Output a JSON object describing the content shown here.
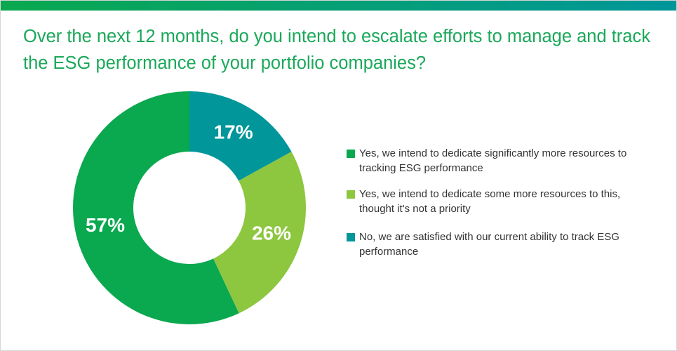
{
  "chart_data": {
    "type": "donut",
    "title": "Over the next 12 months, do you intend to escalate efforts to manage and track the ESG performance of your portfolio companies?",
    "categories": [
      "Yes, we intend to dedicate significantly more resources to tracking ESG performance",
      "Yes, we intend to dedicate some more resources to this, thought it's not a priority",
      "No, we are satisfied with our current ability to track ESG performance"
    ],
    "values": [
      57,
      26,
      17
    ],
    "value_labels": [
      "57%",
      "26%",
      "17%"
    ],
    "colors": [
      "#0aa84f",
      "#8dc63f",
      "#00969a"
    ],
    "startangle": 90,
    "direction": "counterclockwise",
    "legend": "right"
  }
}
